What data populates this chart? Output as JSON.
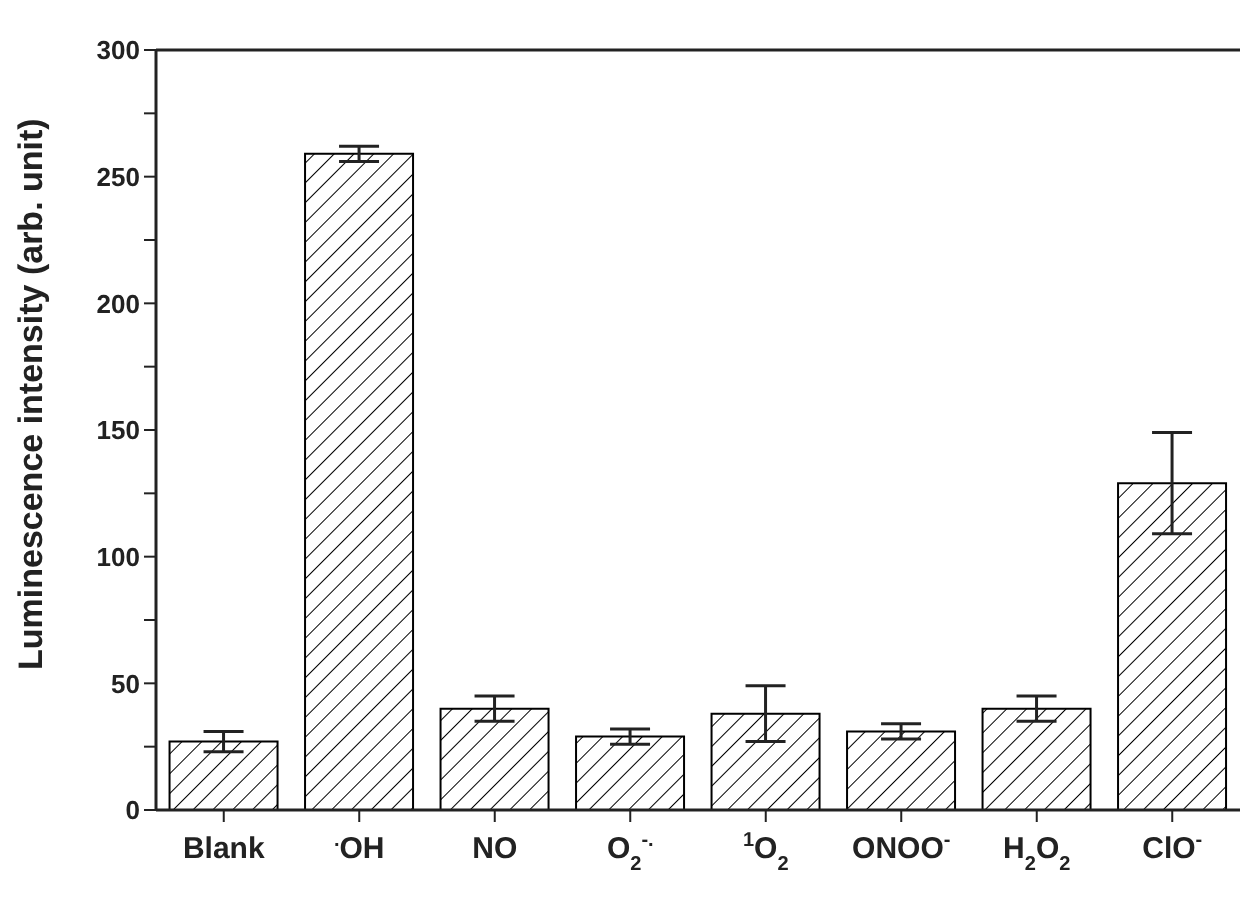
{
  "chart_data": {
    "type": "bar",
    "ylabel": "Luminescence intensity (arb. unit)",
    "categories": [
      "Blank",
      "$^{.}$OH",
      "NO",
      "O$_{2}$$^{-.}$",
      "$^{1}$O$_{2}$",
      "ONOO$^{-}$",
      "H$_{2}$O$_{2}$",
      "ClO$^{-}$"
    ],
    "values": [
      27,
      259,
      40,
      29,
      38,
      31,
      40,
      129
    ],
    "errors": [
      4,
      3,
      5,
      3,
      11,
      3,
      5,
      20
    ],
    "color": "#000000",
    "ylim": [
      0,
      300
    ],
    "yticks": [
      0,
      {
        "value": 25,
        "label": null
      },
      50,
      {
        "value": 75,
        "label": null
      },
      100,
      {
        "value": 125,
        "label": null
      },
      150,
      {
        "value": 175,
        "label": null
      },
      200,
      {
        "value": 225,
        "label": null
      },
      250,
      {
        "value": 275,
        "label": null
      },
      300
    ],
    "grid": false,
    "legend": false
  }
}
